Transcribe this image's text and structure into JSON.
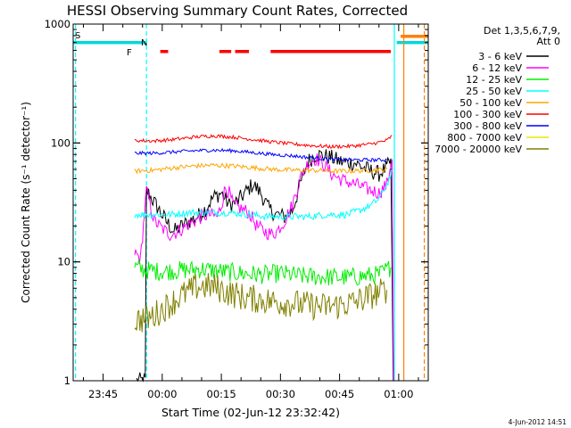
{
  "chart_data": {
    "type": "line",
    "title": "HESSI Observing Summary Count Rates, Corrected",
    "xlabel": "Start Time (02-Jun-12 23:32:42)",
    "ylabel": "Corrected Count Rate (s⁻¹ detector⁻¹)",
    "x_ticks": [
      "23:45",
      "00:00",
      "00:15",
      "00:30",
      "00:45",
      "01:00"
    ],
    "y_ticks": [
      "1",
      "10",
      "100",
      "1000"
    ],
    "y_scale": "log",
    "ylim": [
      1,
      1000
    ],
    "xlim_minutes_from_23_30": [
      7.4,
      97.5
    ],
    "legend_placement": "right",
    "legend_header": [
      "Det 1,3,5,6,7,9,",
      "Att 0"
    ],
    "series": [
      {
        "name": "3 - 6 keV",
        "color": "#000000",
        "points": [
          [
            23.5,
            1.0
          ],
          [
            25.7,
            1.0
          ],
          [
            26.0,
            40
          ],
          [
            29,
            28
          ],
          [
            31,
            22
          ],
          [
            33,
            18
          ],
          [
            35,
            20
          ],
          [
            37,
            22
          ],
          [
            39,
            24
          ],
          [
            41,
            28
          ],
          [
            43,
            35
          ],
          [
            45,
            38
          ],
          [
            47,
            30
          ],
          [
            49,
            32
          ],
          [
            51,
            38
          ],
          [
            53,
            45
          ],
          [
            55,
            38
          ],
          [
            57,
            28
          ],
          [
            59,
            25
          ],
          [
            61,
            24
          ],
          [
            63,
            27
          ],
          [
            65,
            45
          ],
          [
            67,
            70
          ],
          [
            69,
            80
          ],
          [
            71,
            78
          ],
          [
            73,
            75
          ],
          [
            75,
            70
          ],
          [
            77,
            68
          ],
          [
            79,
            68
          ],
          [
            81,
            62
          ],
          [
            83,
            58
          ],
          [
            85,
            55
          ],
          [
            87,
            62
          ],
          [
            88,
            70
          ],
          [
            88.6,
            1.0
          ]
        ]
      },
      {
        "name": "6 - 12 keV",
        "color": "#ff00ff",
        "points": [
          [
            23.0,
            12
          ],
          [
            24.5,
            10.5
          ],
          [
            26.0,
            40
          ],
          [
            28,
            22
          ],
          [
            30,
            19
          ],
          [
            32,
            17
          ],
          [
            34,
            18
          ],
          [
            36,
            20
          ],
          [
            38,
            22
          ],
          [
            40,
            24
          ],
          [
            42,
            25
          ],
          [
            44,
            24
          ],
          [
            45,
            30
          ],
          [
            46,
            42
          ],
          [
            47,
            38
          ],
          [
            48,
            30
          ],
          [
            50,
            28
          ],
          [
            52,
            26
          ],
          [
            54,
            20
          ],
          [
            56,
            18
          ],
          [
            58,
            17
          ],
          [
            59,
            18
          ],
          [
            61,
            22
          ],
          [
            63,
            30
          ],
          [
            65,
            50
          ],
          [
            67,
            68
          ],
          [
            69,
            74
          ],
          [
            71,
            66
          ],
          [
            73,
            55
          ],
          [
            75,
            50
          ],
          [
            77,
            47
          ],
          [
            79,
            45
          ],
          [
            81,
            42
          ],
          [
            83,
            40
          ],
          [
            85,
            38
          ],
          [
            87,
            45
          ],
          [
            88.3,
            75
          ],
          [
            88.7,
            1.0
          ]
        ]
      },
      {
        "name": "12 - 25 keV",
        "color": "#00ee00",
        "points": [
          [
            23.0,
            9.0
          ],
          [
            26,
            8.5
          ],
          [
            30,
            8.3
          ],
          [
            35,
            8.5
          ],
          [
            40,
            8.7
          ],
          [
            45,
            8.3
          ],
          [
            50,
            8.0
          ],
          [
            55,
            7.8
          ],
          [
            60,
            8.0
          ],
          [
            65,
            7.6
          ],
          [
            70,
            7.5
          ],
          [
            75,
            7.4
          ],
          [
            80,
            7.5
          ],
          [
            85,
            7.8
          ],
          [
            88,
            9.0
          ]
        ]
      },
      {
        "name": "25 - 50 keV",
        "color": "#00ffff",
        "points": [
          [
            23.0,
            25
          ],
          [
            27,
            25
          ],
          [
            32,
            25
          ],
          [
            37,
            26
          ],
          [
            42,
            26
          ],
          [
            47,
            26
          ],
          [
            52,
            25
          ],
          [
            57,
            24
          ],
          [
            62,
            24
          ],
          [
            67,
            24
          ],
          [
            72,
            25
          ],
          [
            77,
            25
          ],
          [
            80,
            27
          ],
          [
            83,
            30
          ],
          [
            85,
            34
          ],
          [
            87,
            45
          ],
          [
            88.4,
            58
          ]
        ]
      },
      {
        "name": "50 - 100 keV",
        "color": "#ffa500",
        "points": [
          [
            23.0,
            58
          ],
          [
            28,
            59
          ],
          [
            33,
            62
          ],
          [
            38,
            64
          ],
          [
            43,
            65
          ],
          [
            48,
            64
          ],
          [
            53,
            62
          ],
          [
            58,
            60
          ],
          [
            63,
            59
          ],
          [
            68,
            59
          ],
          [
            73,
            58
          ],
          [
            78,
            58
          ],
          [
            83,
            59
          ],
          [
            87,
            60
          ]
        ]
      },
      {
        "name": "100 - 300 keV",
        "color": "#ff0000",
        "points": [
          [
            23.0,
            105
          ],
          [
            28,
            104
          ],
          [
            33,
            107
          ],
          [
            38,
            112
          ],
          [
            43,
            115
          ],
          [
            48,
            112
          ],
          [
            53,
            107
          ],
          [
            58,
            102
          ],
          [
            63,
            98
          ],
          [
            68,
            95
          ],
          [
            73,
            93
          ],
          [
            78,
            94
          ],
          [
            83,
            98
          ],
          [
            87,
            105
          ],
          [
            88.3,
            115
          ]
        ]
      },
      {
        "name": "300 - 800 keV",
        "color": "#0000ff",
        "points": [
          [
            23.0,
            82
          ],
          [
            28,
            82
          ],
          [
            33,
            84
          ],
          [
            38,
            86
          ],
          [
            43,
            87
          ],
          [
            48,
            86
          ],
          [
            53,
            83
          ],
          [
            58,
            80
          ],
          [
            63,
            78
          ],
          [
            68,
            75
          ],
          [
            73,
            73
          ],
          [
            78,
            72
          ],
          [
            83,
            72
          ],
          [
            87,
            72
          ]
        ]
      },
      {
        "name": "800 - 7000 keV",
        "color": "#e8e800",
        "points": []
      },
      {
        "name": "7000 - 20000 keV",
        "color": "#808000",
        "points": [
          [
            23.0,
            3.2
          ],
          [
            27,
            3.4
          ],
          [
            31,
            4.2
          ],
          [
            35,
            5.2
          ],
          [
            39,
            6.2
          ],
          [
            43,
            6.2
          ],
          [
            47,
            5.5
          ],
          [
            51,
            5.0
          ],
          [
            55,
            4.8
          ],
          [
            59,
            4.6
          ],
          [
            63,
            4.5
          ],
          [
            67,
            4.3
          ],
          [
            71,
            4.2
          ],
          [
            75,
            4.3
          ],
          [
            79,
            4.6
          ],
          [
            83,
            5.2
          ],
          [
            87,
            5.8
          ]
        ]
      }
    ],
    "annotations": {
      "flags": [
        {
          "label": "S",
          "color": "#ff8000"
        },
        {
          "label": "F",
          "color": "#ff0000"
        },
        {
          "label": "N",
          "color": "#00d8d8"
        }
      ],
      "saa_bars": [
        [
          7.4,
          26.0
        ],
        [
          89.5,
          97.5
        ]
      ],
      "night_bar": [
        90.5,
        97.5
      ],
      "flare_bars": [
        [
          29.5,
          31.5
        ],
        [
          44.5,
          47.5
        ],
        [
          48.5,
          52.0
        ],
        [
          57.5,
          88.0
        ]
      ],
      "vlines": [
        {
          "x": 8.0,
          "color": "#00ffff",
          "dash": true
        },
        {
          "x": 26.0,
          "color": "#00ffff",
          "dash": true
        },
        {
          "x": 88.9,
          "color": "#00ffff",
          "dash": false
        },
        {
          "x": 91.3,
          "color": "#ff8000",
          "dash": false
        },
        {
          "x": 96.5,
          "color": "#ff8000",
          "dash": true
        }
      ]
    }
  },
  "timestamp": "4-Jun-2012 14:51"
}
